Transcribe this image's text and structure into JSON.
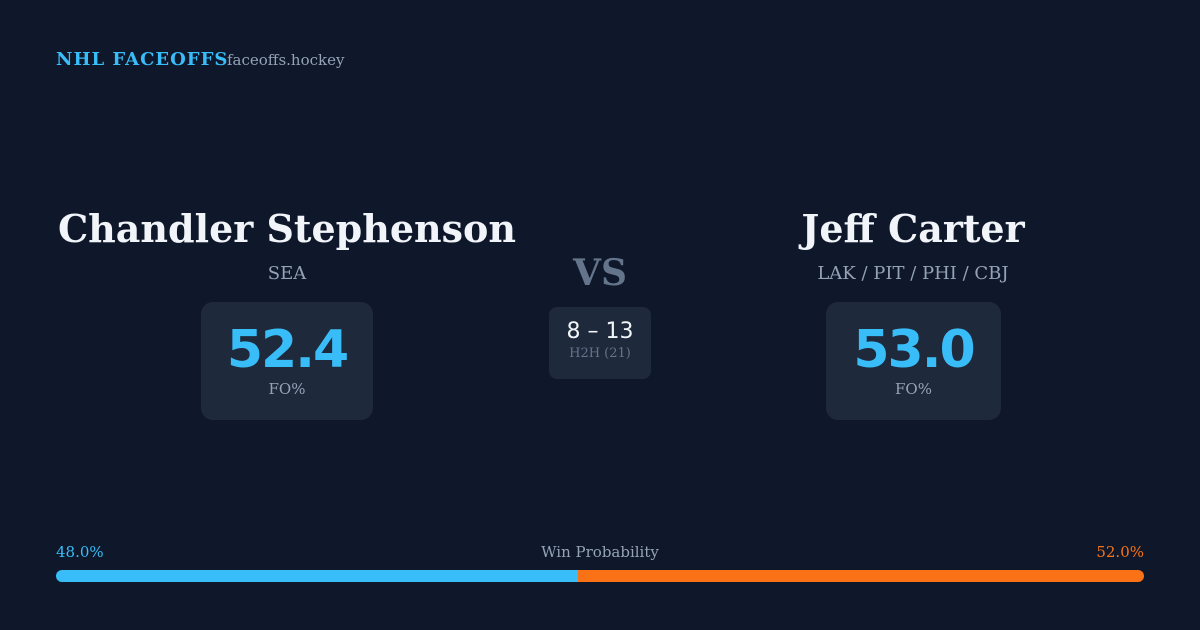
{
  "header": {
    "brand": "NHL FACEOFFS",
    "site": "faceoffs.hockey"
  },
  "players": [
    {
      "name": "Chandler Stephenson",
      "team": "SEA",
      "fo_pct": "52.4",
      "fo_label": "FO%"
    },
    {
      "name": "Jeff Carter",
      "team": "LAK / PIT / PHI / CBJ",
      "fo_pct": "53.0",
      "fo_label": "FO%"
    }
  ],
  "versus": "VS",
  "h2h": {
    "score": "8 – 13",
    "label": "H2H (21)"
  },
  "win_probability": {
    "label": "Win Probability",
    "values": [
      48.0,
      52.0
    ],
    "value_labels": [
      "48.0%",
      "52.0%"
    ],
    "colors": [
      "#38bdf8",
      "#f97316"
    ]
  }
}
